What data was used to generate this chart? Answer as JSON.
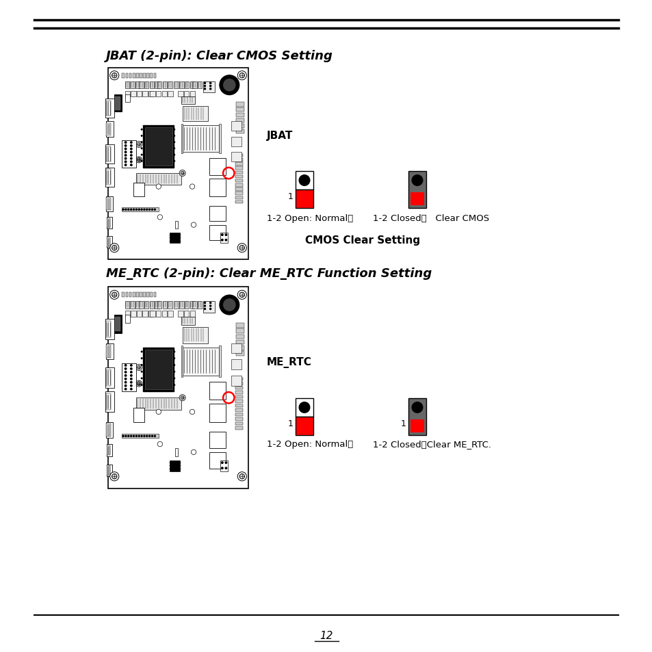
{
  "bg_color": "#ffffff",
  "page_number": "12",
  "section1": {
    "title": "JBAT (2-pin): Clear CMOS Setting",
    "label": "JBAT",
    "open_text": "1-2 Open: Normal；",
    "closed_text": "1-2 Closed：   Clear CMOS",
    "center_text": "CMOS Clear Setting"
  },
  "section2": {
    "title": "ME_RTC (2-pin): Clear ME_RTC Function Setting",
    "label": "ME_RTC",
    "open_text": "1-2 Open: Normal；",
    "closed_text": "1-2 Closed：Clear ME_RTC."
  }
}
